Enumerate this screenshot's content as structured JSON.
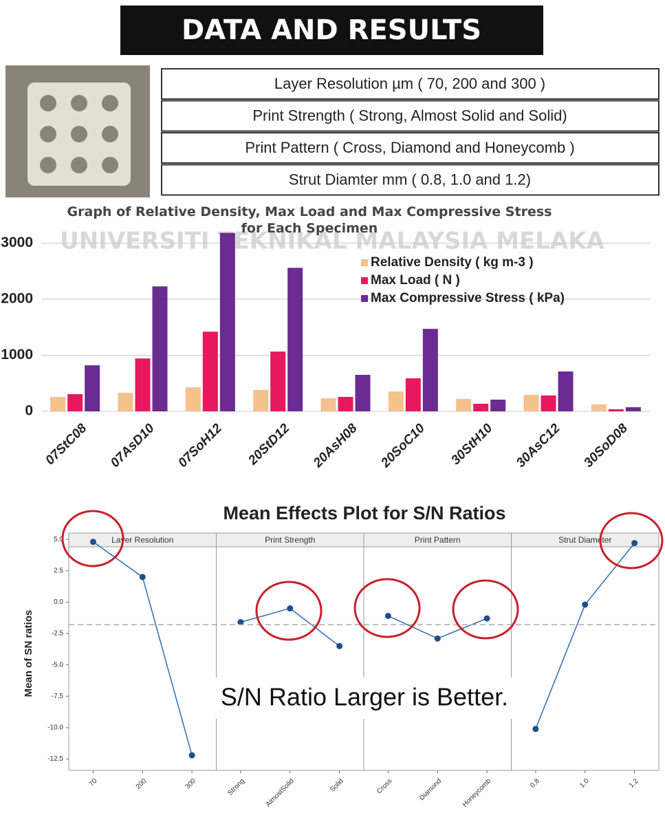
{
  "watermark": "UNIVERSITI TEKNIKAL MALAYSIA MELAKA",
  "header": {
    "title": "DATA AND RESULTS"
  },
  "parameters": [
    "Layer Resolution µm ( 70, 200 and 300 )",
    "Print Strength ( Strong, Almost Solid and Solid)",
    "Print Pattern ( Cross, Diamond and Honeycomb )",
    "Strut Diamter mm ( 0.8, 1.0 and 1.2)"
  ],
  "chart_data": [
    {
      "type": "bar",
      "title": "Graph of Relative Density, Max Load and Max Compressive Stress for Each Specimen",
      "categories": [
        "07StC08",
        "07AsD10",
        "07SoH12",
        "20StD12",
        "20AsH08",
        "20SoC10",
        "30StH10",
        "30AsC12",
        "30SoD08"
      ],
      "series": [
        {
          "name": "Relative Density ( kg m-3 )",
          "color": "#f5c18c",
          "values": [
            257,
            330,
            428,
            380,
            232,
            355,
            220,
            294,
            122
          ]
        },
        {
          "name": "Max Load ( N )",
          "color": "#e8185e",
          "values": [
            306,
            942,
            1420,
            1065,
            257,
            588,
            135,
            282,
            37
          ]
        },
        {
          "name": "Max Compressive Stress ( kPa)",
          "color": "#6b2b90",
          "values": [
            820,
            2227,
            3180,
            2558,
            650,
            1470,
            208,
            710,
            73
          ]
        }
      ],
      "ylim": [
        0,
        3200
      ],
      "yticks": [
        0,
        1000,
        2000,
        3000
      ],
      "grid": true,
      "legend": "top-right"
    },
    {
      "type": "line",
      "title": "Mean Effects Plot for S/N Ratios",
      "y_label": "Mean of SN ratios",
      "color": "#2e6db4",
      "panels": [
        {
          "name": "Layer Resolution",
          "categories": [
            "70",
            "200",
            "300"
          ],
          "values": [
            4.8,
            2.0,
            -12.2
          ]
        },
        {
          "name": "Print Strength",
          "categories": [
            "Strong",
            "AlmostSolid",
            "Solid"
          ],
          "values": [
            -1.6,
            -0.5,
            -3.5
          ]
        },
        {
          "name": "Print Pattern",
          "categories": [
            "Cross",
            "Diamond",
            "Honeycomb"
          ],
          "values": [
            -1.1,
            -2.9,
            -1.3
          ]
        },
        {
          "name": "Strut Diameter",
          "categories": [
            "0.8",
            "1.0",
            "1.2"
          ],
          "values": [
            -10.1,
            -0.2,
            4.7
          ]
        }
      ],
      "reference_line": -1.8,
      "ylim": [
        -13.4,
        5.5
      ],
      "yticks": [
        {
          "value": 5,
          "label": "5.0"
        },
        2.5,
        {
          "value": 0,
          "label": "0.0"
        },
        -2.5,
        {
          "value": -5,
          "label": "-5.0"
        },
        -7.5,
        {
          "value": -10,
          "label": "-10.0"
        },
        -12.5
      ],
      "annotation": "S/N Ratio Larger is Better."
    }
  ]
}
